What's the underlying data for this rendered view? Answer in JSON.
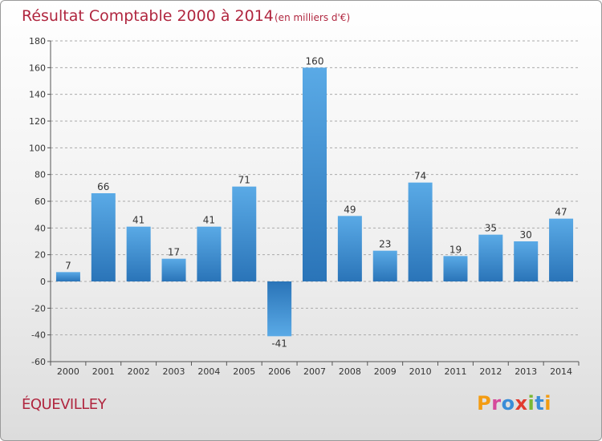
{
  "title": "Résultat Comptable 2000 à 2014",
  "subtitle": "(en milliers d'€)",
  "place": "ÉQUEVILLEY",
  "logo_text": "Proxiti",
  "colors": {
    "title": "#b0263f",
    "bar_light": "#5aaae6",
    "bar_dark": "#2a74b8",
    "grid": "#aaaaaa"
  },
  "chart_data": {
    "type": "bar",
    "title": "Résultat Comptable 2000 à 2014",
    "subtitle": "(en milliers d'€)",
    "xlabel": "",
    "ylabel": "",
    "categories": [
      "2000",
      "2001",
      "2002",
      "2003",
      "2004",
      "2005",
      "2006",
      "2007",
      "2008",
      "2009",
      "2010",
      "2011",
      "2012",
      "2013",
      "2014"
    ],
    "values": [
      7,
      66,
      41,
      17,
      41,
      71,
      -41,
      160,
      49,
      23,
      74,
      19,
      35,
      30,
      47
    ],
    "ylim": [
      -60,
      180
    ],
    "yticks": [
      -60,
      -40,
      -20,
      0,
      20,
      40,
      60,
      80,
      100,
      120,
      140,
      160,
      180
    ],
    "grid": "horizontal dashed",
    "legend": "none"
  }
}
